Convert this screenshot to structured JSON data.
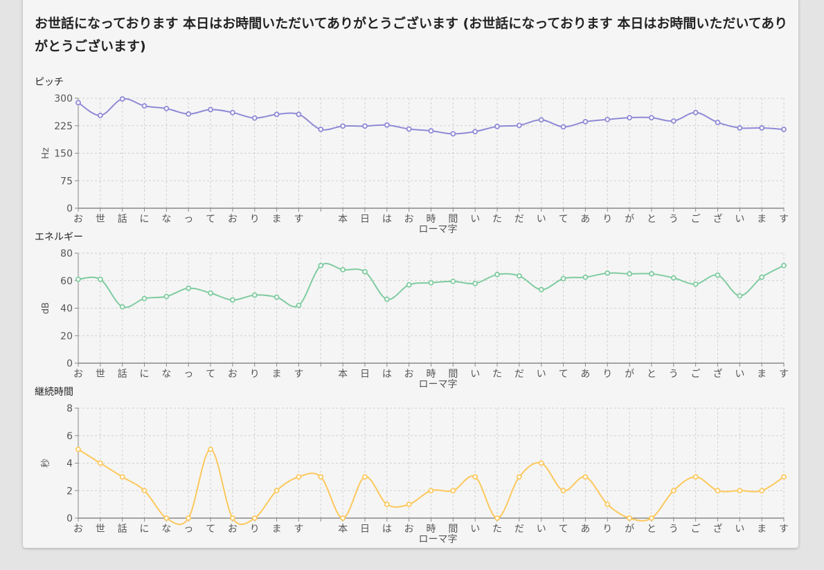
{
  "headline": "お世話になっております 本日はお時間いただいてありがとうございます (お世話になっております 本日はお時間いただいてありがとうございます)",
  "chart_data": [
    {
      "type": "line",
      "title": "ピッチ",
      "xlabel": "ローマ字",
      "ylabel": "Hz",
      "categories": [
        "お",
        "世",
        "話",
        "に",
        "な",
        "っ",
        "て",
        "お",
        "り",
        "ま",
        "す",
        " ",
        "本",
        "日",
        "は",
        "お",
        "時",
        "間",
        "い",
        "た",
        "だ",
        "い",
        "て",
        "あ",
        "り",
        "が",
        "と",
        "う",
        "ご",
        "ざ",
        "い",
        "ま",
        "す"
      ],
      "values": [
        288,
        253,
        298,
        279,
        272,
        257,
        269,
        261,
        246,
        256,
        256,
        215,
        224,
        224,
        227,
        216,
        211,
        203,
        209,
        223,
        226,
        241,
        222,
        236,
        242,
        247,
        247,
        238,
        261,
        234,
        219,
        219,
        215
      ],
      "ylim": [
        0,
        300
      ],
      "yticks": [
        0,
        75,
        150,
        225,
        300
      ],
      "color": "#8f89d6",
      "grid": true
    },
    {
      "type": "line",
      "title": "エネルギー",
      "xlabel": "ローマ字",
      "ylabel": "dB",
      "categories": [
        "お",
        "世",
        "話",
        "に",
        "な",
        "っ",
        "て",
        "お",
        "り",
        "ま",
        "す",
        " ",
        "本",
        "日",
        "は",
        "お",
        "時",
        "間",
        "い",
        "た",
        "だ",
        "い",
        "て",
        "あ",
        "り",
        "が",
        "と",
        "う",
        "ご",
        "ざ",
        "い",
        "ま",
        "す"
      ],
      "values": [
        61,
        61,
        41,
        47,
        48.5,
        54.5,
        51,
        46,
        49.5,
        48,
        42,
        71,
        68,
        66.5,
        46.5,
        57,
        58.5,
        59.5,
        58,
        64.5,
        63.5,
        53.5,
        61.5,
        62.5,
        65.5,
        65,
        65,
        62,
        57.5,
        64,
        49,
        62.5,
        71
      ],
      "ylim": [
        0,
        80
      ],
      "yticks": [
        0,
        20,
        40,
        60,
        80
      ],
      "color": "#7fcba0",
      "grid": true
    },
    {
      "type": "line",
      "title": "継続時間",
      "xlabel": "ローマ字",
      "ylabel": "秒",
      "categories": [
        "お",
        "世",
        "話",
        "に",
        "な",
        "っ",
        "て",
        "お",
        "り",
        "ま",
        "す",
        " ",
        "本",
        "日",
        "は",
        "お",
        "時",
        "間",
        "い",
        "た",
        "だ",
        "い",
        "て",
        "あ",
        "り",
        "が",
        "と",
        "う",
        "ご",
        "ざ",
        "い",
        "ま",
        "す"
      ],
      "values": [
        5,
        4,
        3,
        2,
        0,
        0,
        5,
        0,
        0,
        2,
        3,
        3,
        0,
        3,
        1,
        1,
        2,
        2,
        3,
        0,
        3,
        4,
        2,
        3,
        1,
        0,
        0,
        2,
        3,
        2,
        2,
        2,
        3
      ],
      "ylim": [
        0,
        8
      ],
      "yticks": [
        0,
        2,
        4,
        6,
        8
      ],
      "color": "#fcc85c",
      "grid": true
    }
  ]
}
